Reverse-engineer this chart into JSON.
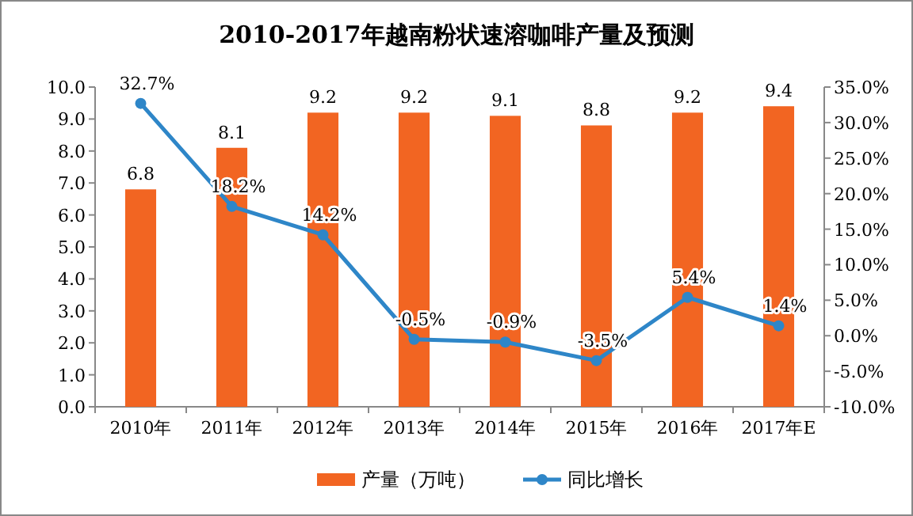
{
  "chart_data": {
    "type": "bar",
    "title": "2010-2017年越南粉状速溶咖啡产量及预测",
    "categories": [
      "2010年",
      "2011年",
      "2012年",
      "2013年",
      "2014年",
      "2015年",
      "2016年",
      "2017年E"
    ],
    "series": [
      {
        "name": "产量（万吨）",
        "color": "#f26522",
        "values": [
          6.8,
          8.1,
          9.2,
          9.2,
          9.1,
          8.8,
          9.2,
          9.4
        ],
        "value_labels": [
          "6.8",
          "8.1",
          "9.2",
          "9.2",
          "9.1",
          "8.8",
          "9.2",
          "9.4"
        ]
      },
      {
        "name": "同比增长",
        "type": "line",
        "axis": "y2",
        "color": "#2e86c8",
        "marker": "circle",
        "values": [
          32.7,
          18.2,
          14.2,
          -0.5,
          -0.9,
          -3.5,
          5.4,
          1.4
        ],
        "value_labels": [
          "32.7%",
          "18.2%",
          "14.2%",
          "-0.5%",
          "-0.9%",
          "-3.5%",
          "5.4%",
          "1.4%"
        ]
      }
    ],
    "ylim": [
      0,
      10
    ],
    "yticks": [
      {
        "value": 0,
        "label": "0.0"
      },
      {
        "value": 1,
        "label": "1.0"
      },
      {
        "value": 2,
        "label": "2.0"
      },
      {
        "value": 3,
        "label": "3.0"
      },
      {
        "value": 4,
        "label": "4.0"
      },
      {
        "value": 5,
        "label": "5.0"
      },
      {
        "value": 6,
        "label": "6.0"
      },
      {
        "value": 7,
        "label": "7.0"
      },
      {
        "value": 8,
        "label": "8.0"
      },
      {
        "value": 9,
        "label": "9.0"
      },
      {
        "value": 10,
        "label": "10.0"
      }
    ],
    "y2lim": [
      -10,
      35
    ],
    "y2ticks": [
      {
        "value": -10,
        "label": "-10.0%"
      },
      {
        "value": -5,
        "label": "-5.0%"
      },
      {
        "value": 0,
        "label": "0.0%"
      },
      {
        "value": 5,
        "label": "5.0%"
      },
      {
        "value": 10,
        "label": "10.0%"
      },
      {
        "value": 15,
        "label": "15.0%"
      },
      {
        "value": 20,
        "label": "20.0%"
      },
      {
        "value": 25,
        "label": "25.0%"
      },
      {
        "value": 30,
        "label": "30.0%"
      },
      {
        "value": 35,
        "label": "35.0%"
      }
    ],
    "legend": "bottom"
  }
}
